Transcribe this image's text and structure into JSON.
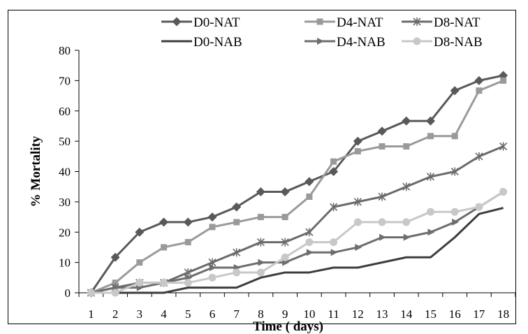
{
  "chart_data": {
    "type": "line",
    "title": "",
    "xlabel": "Time ( days)",
    "ylabel": "% Mortality",
    "ylim": [
      0,
      80
    ],
    "yticks": [
      0,
      10,
      20,
      30,
      40,
      50,
      60,
      70,
      80
    ],
    "x": [
      1,
      2,
      3,
      4,
      5,
      6,
      7,
      8,
      9,
      10,
      11,
      12,
      13,
      14,
      15,
      16,
      17,
      18
    ],
    "grid": false,
    "legend_position": "top",
    "series": [
      {
        "name": "D0-NAT",
        "marker": "diamond",
        "color": "#595959",
        "values": [
          0,
          11.7,
          20,
          23.3,
          23.3,
          25,
          28.3,
          33.3,
          33.3,
          36.7,
          40,
          50,
          53.3,
          56.7,
          56.7,
          66.7,
          70,
          71.7
        ]
      },
      {
        "name": "D4-NAT",
        "marker": "square",
        "color": "#9a9a9a",
        "values": [
          0,
          3.3,
          10,
          15,
          16.7,
          21.7,
          23.3,
          25,
          25,
          31.7,
          43.3,
          46.7,
          48.3,
          48.3,
          51.7,
          51.7,
          66.7,
          70
        ]
      },
      {
        "name": "D8-NAT",
        "marker": "star",
        "color": "#6b6b6b",
        "values": [
          0,
          1.7,
          3.3,
          3.3,
          6.7,
          10,
          13.3,
          16.7,
          16.7,
          20,
          28.3,
          30,
          31.7,
          35,
          38.3,
          40,
          45,
          48.3
        ]
      },
      {
        "name": "D0-NAB",
        "marker": "none",
        "color": "#3d3d3d",
        "values": [
          0,
          0,
          0,
          0,
          1.7,
          1.7,
          1.7,
          5,
          6.7,
          6.7,
          8.3,
          8.3,
          10,
          11.7,
          11.7,
          18.3,
          26,
          28
        ]
      },
      {
        "name": "D4-NAB",
        "marker": "arrow",
        "color": "#6e6e6e",
        "values": [
          0,
          1.7,
          1.7,
          3.3,
          5,
          8.3,
          8.3,
          10,
          10,
          13.3,
          13.3,
          15,
          18.3,
          18.3,
          20,
          23.3,
          28.3,
          33.3
        ]
      },
      {
        "name": "D8-NAB",
        "marker": "circle",
        "color": "#c8c8c8",
        "values": [
          0,
          0,
          3.3,
          3.3,
          3.3,
          5,
          6.7,
          6.7,
          11.7,
          16.7,
          16.7,
          23.3,
          23.3,
          23.3,
          26.7,
          26.7,
          28.3,
          33.3
        ]
      }
    ]
  }
}
